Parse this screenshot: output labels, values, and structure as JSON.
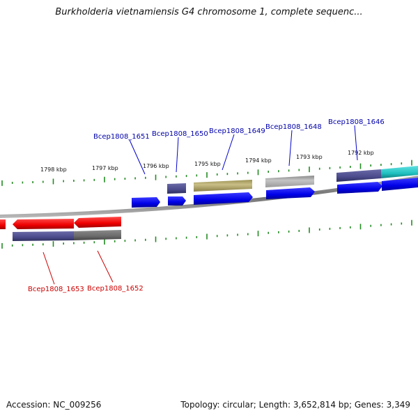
{
  "title": "Burkholderia vietnamiensis G4 chromosome 1, complete sequenc...",
  "footer": {
    "accession": "Accession: NC_009256",
    "stats": "Topology: circular; Length: 3,652,814 bp; Genes: 3,349"
  },
  "colors": {
    "forward_cds": "#0000ee",
    "reverse_cds": "#ee0000",
    "backbone": "#808080",
    "tick": "#228b22",
    "label_forward": "#0000aa",
    "label_reverse": "#cc0000",
    "feature_navy": "#4b4b8c",
    "feature_olive": "#bdb276",
    "feature_grey": "#b8b8b8",
    "feature_cyan": "#20c8c8"
  },
  "scale_labels": [
    "1798 kbp",
    "1797 kbp",
    "1796 kbp",
    "1795 kbp",
    "1794 kbp",
    "1793 kbp",
    "1792 kbp"
  ],
  "gene_labels": {
    "forward": [
      "Bcep1808_1651",
      "Bcep1808_1650",
      "Bcep1808_1649",
      "Bcep1808_1648",
      "Bcep1808_1646"
    ],
    "reverse": [
      "Bcep1808_1653",
      "Bcep1808_1652"
    ]
  }
}
